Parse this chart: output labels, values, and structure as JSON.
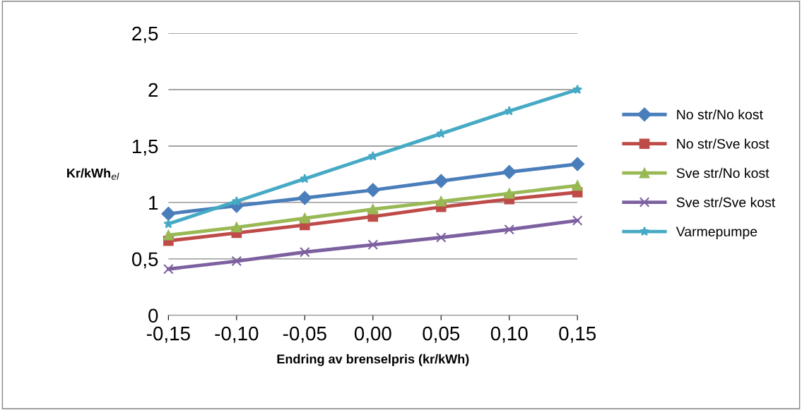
{
  "chart_data": {
    "type": "line",
    "xlabel": "Endring av brenselpris (kr/kWh)",
    "ylabel": "Kr/kWh$_{el}$",
    "categories": [
      "-0,15",
      "-0,10",
      "-0,05",
      "0,00",
      "0,05",
      "0,10",
      "0,15"
    ],
    "ylim": [
      0,
      2.5
    ],
    "yticks": [
      {
        "value": 0,
        "label": "0"
      },
      {
        "value": 0.5,
        "label": "0,5"
      },
      {
        "value": 1,
        "label": "1"
      },
      {
        "value": 1.5,
        "label": "1,5"
      },
      {
        "value": 2,
        "label": "2"
      },
      {
        "value": 2.5,
        "label": "2,5"
      }
    ],
    "grid": "y",
    "legend": "right",
    "series": [
      {
        "name": "No str/No kost",
        "color": "#4a7ebb",
        "marker": "diamond",
        "values": [
          0.9,
          0.97,
          1.04,
          1.11,
          1.19,
          1.27,
          1.34
        ]
      },
      {
        "name": "No str/Sve kost",
        "color": "#be4b48",
        "marker": "square",
        "values": [
          0.66,
          0.73,
          0.8,
          0.875,
          0.96,
          1.03,
          1.09
        ]
      },
      {
        "name": "Sve str/No kost",
        "color": "#98b954",
        "marker": "triangle",
        "values": [
          0.71,
          0.78,
          0.86,
          0.94,
          1.01,
          1.08,
          1.15
        ]
      },
      {
        "name": "Sve str/Sve kost",
        "color": "#7d60a0",
        "marker": "cross",
        "values": [
          0.41,
          0.48,
          0.56,
          0.625,
          0.69,
          0.76,
          0.84
        ]
      },
      {
        "name": "Varmepumpe",
        "color": "#46aac5",
        "marker": "star",
        "values": [
          0.81,
          1.01,
          1.21,
          1.41,
          1.61,
          1.81,
          2.0
        ]
      }
    ]
  }
}
